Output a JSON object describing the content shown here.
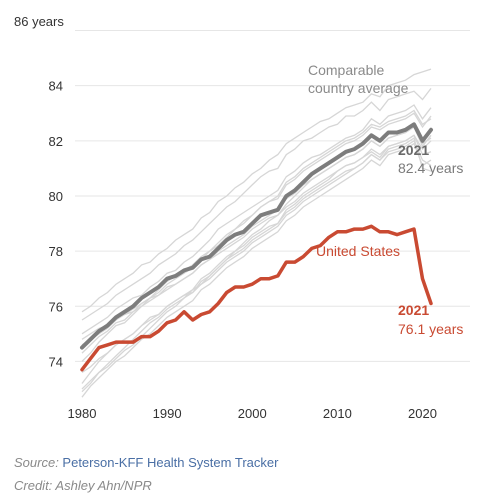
{
  "chart_data": {
    "type": "line",
    "title": "",
    "xlabel": "",
    "ylabel": "",
    "y_unit_label": "86 years",
    "xlim": [
      1980,
      2021
    ],
    "ylim": [
      72.6,
      86.4
    ],
    "x_ticks": [
      1980,
      1990,
      2000,
      2010,
      2020
    ],
    "y_ticks": [
      74,
      76,
      78,
      80,
      82,
      84
    ],
    "grid": "horizontal",
    "colors": {
      "us": "#c94a32",
      "avg": "#7d7d7d",
      "comparable": "#d6d6d6"
    },
    "annotations": {
      "avg_label": [
        "Comparable",
        "country average"
      ],
      "avg_end_year": "2021",
      "avg_end_value": "82.4 years",
      "us_label": "United States",
      "us_end_year": "2021",
      "us_end_value": "76.1 years"
    },
    "years": [
      1980,
      1981,
      1982,
      1983,
      1984,
      1985,
      1986,
      1987,
      1988,
      1989,
      1990,
      1991,
      1992,
      1993,
      1994,
      1995,
      1996,
      1997,
      1998,
      1999,
      2000,
      2001,
      2002,
      2003,
      2004,
      2005,
      2006,
      2007,
      2008,
      2009,
      2010,
      2011,
      2012,
      2013,
      2014,
      2015,
      2016,
      2017,
      2018,
      2019,
      2020,
      2021
    ],
    "series": [
      {
        "name": "United States",
        "values": [
          73.7,
          74.1,
          74.5,
          74.6,
          74.7,
          74.7,
          74.7,
          74.9,
          74.9,
          75.1,
          75.4,
          75.5,
          75.8,
          75.5,
          75.7,
          75.8,
          76.1,
          76.5,
          76.7,
          76.7,
          76.8,
          77.0,
          77.0,
          77.1,
          77.6,
          77.6,
          77.8,
          78.1,
          78.2,
          78.5,
          78.7,
          78.7,
          78.8,
          78.8,
          78.9,
          78.7,
          78.7,
          78.6,
          78.7,
          78.8,
          77.0,
          76.1
        ]
      },
      {
        "name": "Comparable country average",
        "values": [
          74.5,
          74.8,
          75.1,
          75.3,
          75.6,
          75.8,
          76.0,
          76.3,
          76.5,
          76.7,
          77.0,
          77.1,
          77.3,
          77.4,
          77.7,
          77.8,
          78.1,
          78.4,
          78.6,
          78.7,
          79.0,
          79.3,
          79.4,
          79.5,
          80.0,
          80.2,
          80.5,
          80.8,
          81.0,
          81.2,
          81.4,
          81.6,
          81.7,
          81.9,
          82.2,
          82.0,
          82.3,
          82.3,
          82.4,
          82.6,
          82.0,
          82.4
        ]
      }
    ],
    "comparable_countries": [
      [
        75.8,
        76.0,
        76.3,
        76.5,
        76.8,
        77.0,
        77.2,
        77.5,
        77.6,
        77.9,
        78.1,
        78.4,
        78.6,
        78.8,
        79.2,
        79.4,
        79.8,
        80.0,
        80.3,
        80.5,
        80.8,
        81.0,
        81.3,
        81.5,
        81.9,
        82.1,
        82.3,
        82.5,
        82.7,
        82.8,
        83.0,
        83.2,
        83.3,
        83.4,
        83.7,
        83.6,
        84.0,
        84.1,
        84.2,
        84.4,
        84.5,
        84.6
      ],
      [
        75.5,
        75.7,
        75.9,
        76.1,
        76.4,
        76.6,
        76.8,
        77.0,
        77.2,
        77.5,
        77.7,
        77.9,
        78.2,
        78.4,
        78.7,
        79.0,
        79.3,
        79.6,
        79.8,
        80.1,
        80.4,
        80.7,
        80.9,
        81.0,
        81.5,
        81.7,
        82.0,
        82.1,
        82.3,
        82.5,
        82.6,
        82.9,
        82.9,
        83.1,
        83.4,
        83.1,
        83.5,
        83.6,
        83.7,
        83.8,
        83.5,
        83.9
      ],
      [
        74.0,
        74.3,
        74.7,
        75.0,
        75.3,
        75.4,
        75.7,
        76.0,
        76.3,
        76.5,
        76.8,
        77.0,
        77.2,
        77.4,
        77.7,
        78.0,
        78.2,
        78.5,
        78.8,
        79.1,
        79.3,
        79.6,
        79.8,
        79.9,
        80.4,
        80.6,
        80.9,
        81.1,
        81.3,
        81.5,
        81.7,
        81.9,
        82.0,
        82.2,
        82.5,
        82.4,
        82.6,
        82.7,
        82.8,
        83.0,
        82.5,
        82.9
      ],
      [
        73.0,
        73.3,
        73.6,
        73.8,
        74.1,
        74.4,
        74.6,
        74.9,
        75.2,
        75.5,
        75.8,
        76.0,
        76.3,
        76.6,
        76.8,
        77.1,
        77.4,
        77.7,
        78.0,
        78.3,
        78.6,
        78.8,
        79.1,
        79.3,
        79.7,
        80.0,
        80.3,
        80.6,
        80.8,
        81.0,
        81.2,
        81.4,
        81.5,
        81.7,
        82.0,
        81.8,
        82.1,
        82.2,
        82.3,
        82.5,
        81.8,
        82.2
      ],
      [
        73.6,
        73.8,
        74.1,
        74.3,
        74.6,
        74.8,
        75.0,
        75.3,
        75.6,
        75.7,
        76.0,
        76.2,
        76.4,
        76.6,
        77.0,
        77.2,
        77.5,
        77.8,
        78.0,
        78.2,
        78.5,
        78.7,
        78.9,
        79.0,
        79.5,
        79.7,
        80.0,
        80.2,
        80.4,
        80.6,
        80.9,
        81.1,
        81.2,
        81.4,
        81.7,
        81.5,
        81.8,
        81.9,
        82.0,
        82.2,
        81.7,
        82.0
      ],
      [
        74.8,
        75.0,
        75.2,
        75.3,
        75.6,
        75.7,
        75.9,
        76.1,
        76.3,
        76.4,
        76.7,
        76.8,
        77.0,
        77.2,
        77.5,
        77.7,
        77.9,
        78.1,
        78.3,
        78.5,
        78.8,
        79.0,
        79.2,
        79.3,
        79.6,
        79.8,
        80.1,
        80.3,
        80.5,
        80.7,
        80.9,
        81.1,
        81.2,
        81.4,
        81.6,
        81.4,
        81.8,
        81.9,
        82.0,
        82.2,
        81.5,
        81.6
      ],
      [
        73.2,
        73.6,
        74.0,
        74.3,
        74.6,
        74.8,
        75.0,
        75.3,
        75.5,
        75.7,
        76.0,
        76.2,
        76.4,
        76.5,
        76.8,
        77.0,
        77.3,
        77.6,
        77.8,
        78.0,
        78.3,
        78.5,
        78.7,
        78.9,
        79.3,
        79.5,
        79.8,
        80.0,
        80.2,
        80.4,
        80.6,
        80.8,
        81.0,
        81.2,
        81.5,
        81.3,
        81.6,
        81.7,
        81.8,
        82.0,
        81.3,
        81.1
      ],
      [
        75.0,
        75.2,
        75.4,
        75.6,
        75.9,
        76.1,
        76.3,
        76.4,
        76.7,
        76.9,
        77.2,
        77.3,
        77.6,
        77.8,
        78.1,
        78.4,
        78.8,
        79.0,
        79.2,
        79.4,
        79.6,
        79.8,
        80.0,
        80.2,
        80.7,
        80.9,
        81.2,
        81.4,
        81.5,
        81.7,
        81.9,
        82.1,
        82.2,
        82.4,
        82.8,
        82.6,
        82.9,
        83.0,
        83.1,
        83.3,
        82.8,
        83.2
      ],
      [
        72.9,
        73.2,
        73.6,
        73.9,
        74.2,
        74.5,
        74.8,
        75.1,
        75.4,
        75.6,
        75.9,
        76.1,
        76.3,
        76.5,
        76.9,
        77.1,
        77.4,
        77.7,
        77.9,
        78.1,
        78.4,
        78.6,
        78.8,
        79.0,
        79.4,
        79.6,
        79.9,
        80.1,
        80.3,
        80.5,
        80.7,
        80.9,
        81.0,
        81.2,
        81.5,
        81.3,
        81.7,
        81.8,
        81.9,
        82.1,
        81.0,
        80.9
      ],
      [
        74.3,
        74.6,
        74.9,
        75.1,
        75.4,
        75.5,
        75.8,
        76.1,
        76.3,
        76.6,
        76.9,
        77.1,
        77.3,
        77.5,
        77.8,
        78.0,
        78.3,
        78.6,
        78.8,
        79.0,
        79.3,
        79.6,
        79.8,
        80.0,
        80.5,
        80.7,
        81.0,
        81.2,
        81.4,
        81.6,
        81.8,
        82.0,
        82.1,
        82.3,
        82.6,
        82.5,
        82.7,
        82.8,
        82.9,
        83.1,
        82.6,
        82.8
      ],
      [
        72.7,
        73.1,
        73.4,
        73.7,
        74.0,
        74.2,
        74.5,
        74.8,
        75.0,
        75.3,
        75.6,
        75.8,
        76.0,
        76.2,
        76.6,
        76.8,
        77.1,
        77.4,
        77.6,
        77.8,
        78.1,
        78.3,
        78.5,
        78.7,
        79.1,
        79.3,
        79.6,
        79.8,
        80.0,
        80.2,
        80.4,
        80.6,
        80.8,
        81.0,
        81.3,
        81.1,
        81.5,
        81.6,
        81.7,
        81.9,
        81.1,
        81.3
      ],
      [
        74.6,
        74.8,
        75.0,
        75.2,
        75.5,
        75.7,
        75.8,
        76.0,
        76.2,
        76.4,
        76.6,
        76.8,
        77.0,
        77.2,
        77.5,
        77.7,
        78.0,
        78.2,
        78.4,
        78.6,
        78.9,
        79.1,
        79.3,
        79.5,
        79.9,
        80.1,
        80.4,
        80.6,
        80.8,
        81.0,
        81.2,
        81.4,
        81.5,
        81.7,
        82.0,
        81.8,
        82.1,
        82.2,
        82.3,
        82.5,
        81.9,
        82.1
      ]
    ]
  },
  "footer": {
    "source_prefix": "Source: ",
    "source_name": "Peterson-KFF Health System Tracker",
    "credit": "Credit: Ashley Ahn/NPR"
  }
}
